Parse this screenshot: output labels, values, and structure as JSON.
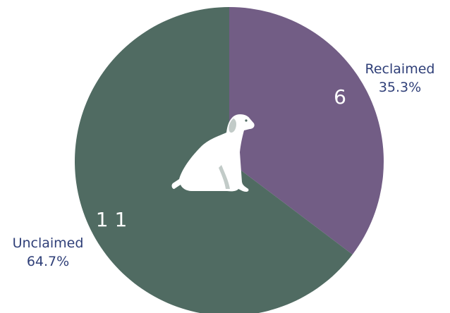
{
  "chart_data": {
    "type": "pie",
    "title": "",
    "slices": [
      {
        "label": "Reclaimed",
        "value": 6,
        "value_label": "6",
        "percent_label": "35.3%",
        "color": "#725d85"
      },
      {
        "label": "Unclaimed",
        "value": 11,
        "value_label": "1 1",
        "percent_label": "64.7%",
        "color": "#506b62"
      }
    ],
    "start_angle_deg": 0,
    "direction": "clockwise",
    "center_icon": "sitting-dog-icon",
    "icon_color": "#ffffff",
    "label_color": "#2f3f78"
  }
}
